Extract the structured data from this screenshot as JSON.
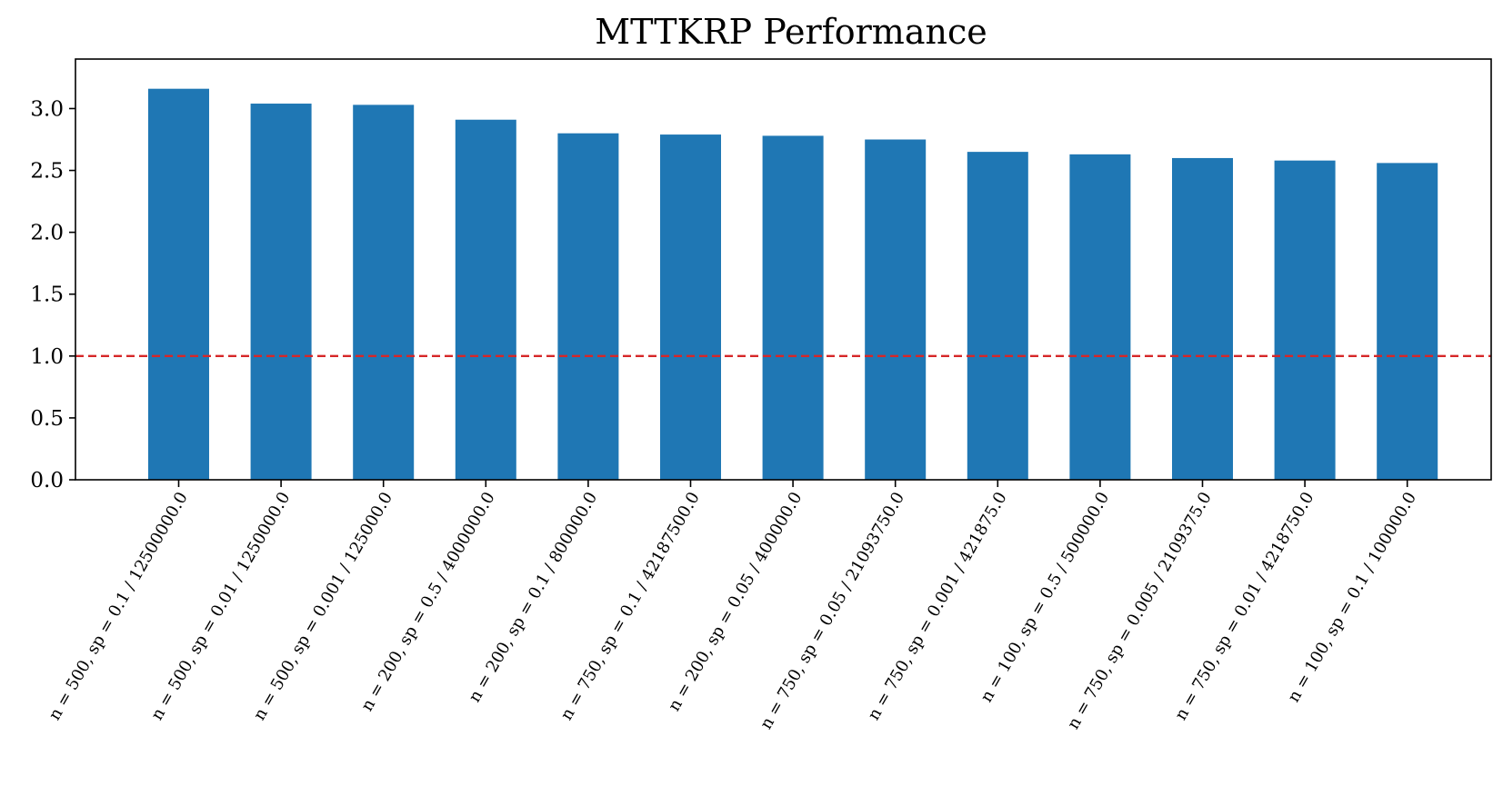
{
  "chart_data": {
    "type": "bar",
    "title": "MTTKRP Performance",
    "xlabel": "",
    "ylabel": "",
    "categories": [
      "n = 500, sp = 0.1 / 12500000.0",
      "n = 500, sp = 0.01 / 1250000.0",
      "n = 500, sp = 0.001 / 125000.0",
      "n = 200, sp = 0.5 / 4000000.0",
      "n = 200, sp = 0.1 / 800000.0",
      "n = 750, sp = 0.1 / 42187500.0",
      "n = 200, sp = 0.05 / 400000.0",
      "n = 750, sp = 0.05 / 21093750.0",
      "n = 750, sp = 0.001 / 421875.0",
      "n = 100, sp = 0.5 / 500000.0",
      "n = 750, sp = 0.005 / 2109375.0",
      "n = 750, sp = 0.01 / 4218750.0",
      "n = 100, sp = 0.1 / 100000.0"
    ],
    "values": [
      3.16,
      3.04,
      3.03,
      2.91,
      2.8,
      2.79,
      2.78,
      2.75,
      2.65,
      2.63,
      2.6,
      2.58,
      2.56
    ],
    "ylim": [
      0,
      3.4
    ],
    "yticks": [
      "0.0",
      "0.5",
      "1.0",
      "1.5",
      "2.0",
      "2.5",
      "3.0"
    ],
    "reference_line": {
      "y": 1.0,
      "style": "dashed",
      "color": "#d62728"
    },
    "bar_color": "#1f77b4",
    "grid": false,
    "legend": "none"
  }
}
